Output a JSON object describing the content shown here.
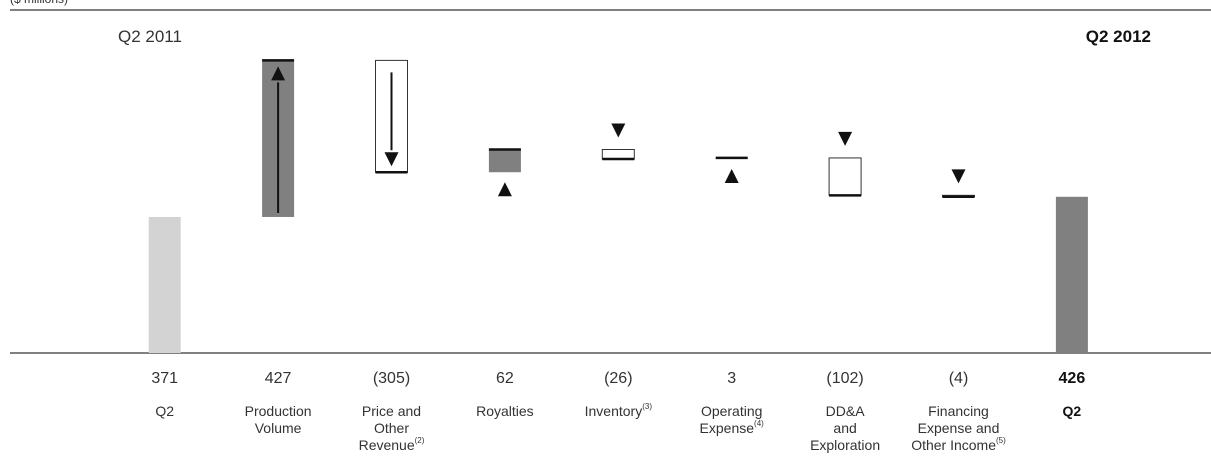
{
  "chart_data": {
    "type": "waterfall",
    "unit_label": "($ millions)",
    "annotations": [
      "Q2 2011",
      "Q2 2012"
    ],
    "categories": [
      "Q2",
      "Production\nVolume",
      "Price and\nOther\nRevenue",
      "Royalties",
      "Inventory",
      "Operating\nExpense",
      "DD&A\nand\nExploration",
      "Financing\nExpense and\nOther Income",
      "Q2"
    ],
    "category_notes": [
      null,
      null,
      "(2)",
      null,
      "(3)",
      "(4)",
      null,
      "(5)",
      null
    ],
    "values": [
      371,
      427,
      -305,
      62,
      -26,
      3,
      -102,
      -4,
      426
    ],
    "value_labels": [
      "371",
      "427",
      "(305)",
      "62",
      "(26)",
      "3",
      "(102)",
      "(4)",
      "426"
    ],
    "is_total": [
      true,
      false,
      false,
      false,
      false,
      false,
      false,
      false,
      true
    ],
    "total_colors": [
      "#d3d3d3",
      "#808080"
    ],
    "increase_color": "#808080",
    "decrease_color": "#ffffff",
    "ylim": [
      0,
      960
    ]
  }
}
